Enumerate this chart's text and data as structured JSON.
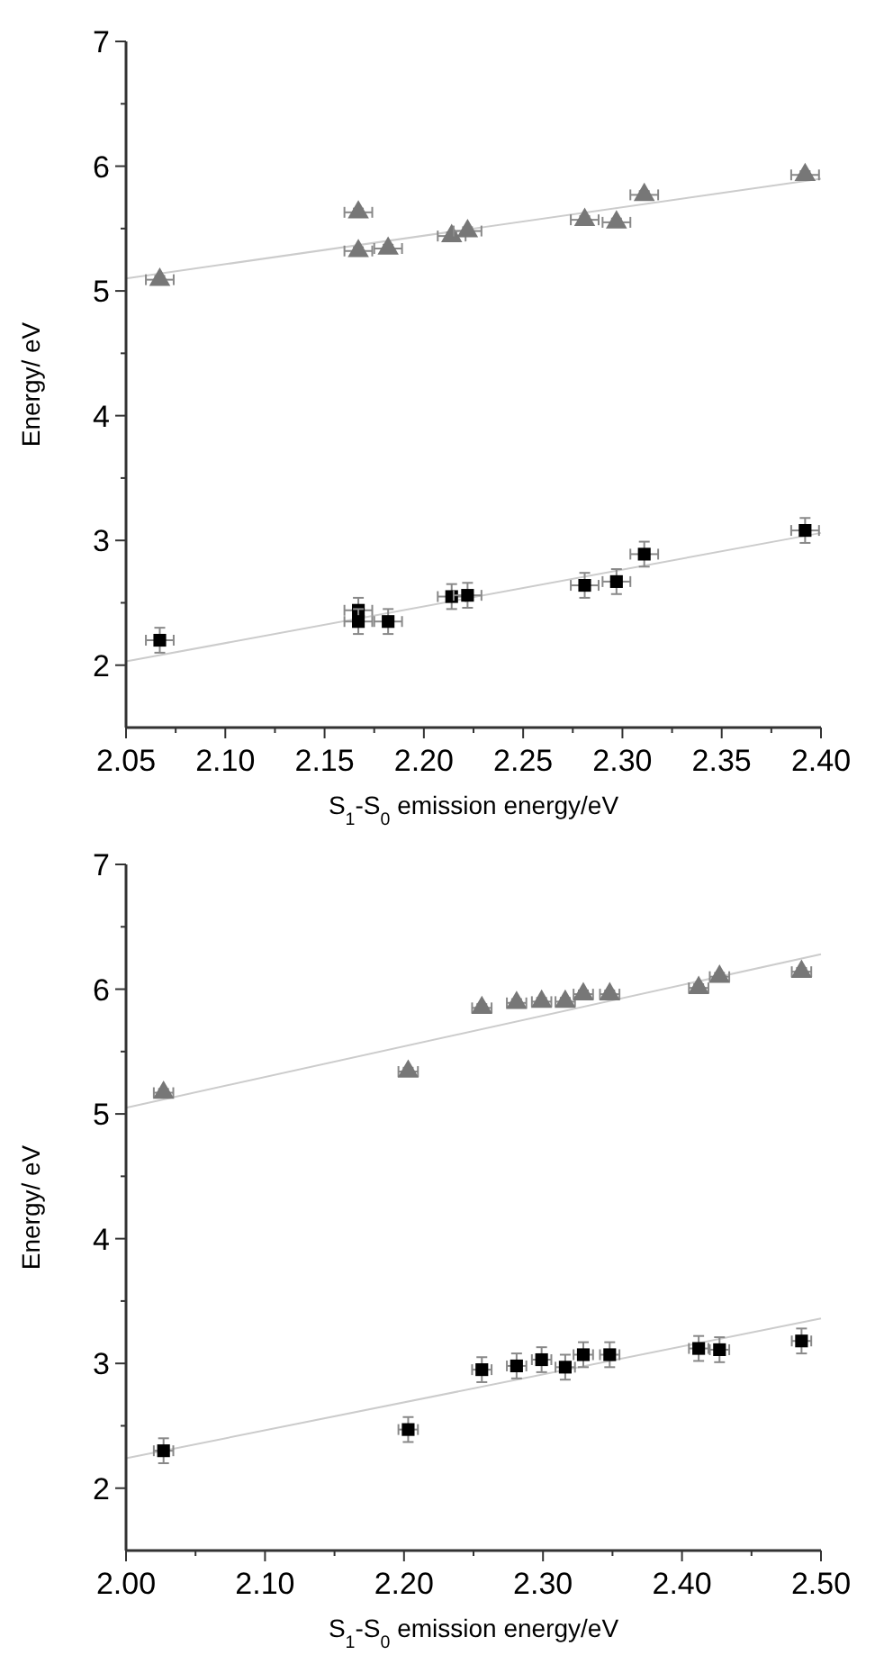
{
  "chart_data": [
    {
      "type": "scatter",
      "xlabel": "S$_{1}$-S$_{0}$ emission energy/eV",
      "ylabel": "Energy/ eV",
      "xlim": [
        2.05,
        2.4
      ],
      "xticks": [
        2.05,
        {
          "value": 2.075,
          "label": null
        },
        {
          "value": 2.1,
          "label": "2.10"
        },
        {
          "value": 2.125,
          "label": null
        },
        2.15,
        {
          "value": 2.175,
          "label": null
        },
        {
          "value": 2.2,
          "label": "2.20"
        },
        {
          "value": 2.225,
          "label": null
        },
        2.25,
        {
          "value": 2.275,
          "label": null
        },
        {
          "value": 2.3,
          "label": "2.30"
        },
        {
          "value": 2.325,
          "label": null
        },
        2.35,
        {
          "value": 2.375,
          "label": null
        },
        {
          "value": 2.4,
          "label": "2.40"
        }
      ],
      "ylim": [
        1.5,
        7
      ],
      "yticks": [
        2,
        {
          "value": 2.5,
          "label": null
        },
        3,
        {
          "value": 3.5,
          "label": null
        },
        4,
        {
          "value": 4.5,
          "label": null
        },
        5,
        {
          "value": 5.5,
          "label": null
        },
        6,
        {
          "value": 6.5,
          "label": null
        },
        7
      ],
      "series": [
        {
          "type": "line",
          "color": "#cccccc",
          "x": [
            2.05,
            2.4
          ],
          "values": [
            5.1,
            5.9
          ]
        },
        {
          "type": "line",
          "color": "#cccccc",
          "x": [
            2.05,
            2.4
          ],
          "values": [
            2.03,
            3.06
          ]
        },
        {
          "color": "#777777",
          "marker": "triangle",
          "x": [
            2.067,
            2.167,
            2.167,
            2.182,
            2.214,
            2.222,
            2.281,
            2.297,
            2.311,
            2.392
          ],
          "values": [
            5.09,
            5.63,
            5.32,
            5.34,
            5.44,
            5.48,
            5.57,
            5.55,
            5.77,
            5.93
          ],
          "errors": [
            0.03,
            0.03,
            0.03,
            0.03,
            0.03,
            0.03,
            0.03,
            0.03,
            0.03,
            0.03
          ],
          "xerrors": [
            0.007,
            0.007,
            0.007,
            0.007,
            0.007,
            0.007,
            0.007,
            0.007,
            0.007,
            0.007
          ]
        },
        {
          "color": "#000000",
          "marker": "square",
          "x": [
            2.067,
            2.167,
            2.167,
            2.182,
            2.214,
            2.222,
            2.281,
            2.297,
            2.311,
            2.392
          ],
          "values": [
            2.2,
            2.44,
            2.35,
            2.35,
            2.55,
            2.56,
            2.64,
            2.67,
            2.89,
            3.08
          ],
          "errors": [
            0.1,
            0.1,
            0.1,
            0.1,
            0.1,
            0.1,
            0.1,
            0.1,
            0.1,
            0.1
          ],
          "xerrors": [
            0.007,
            0.007,
            0.007,
            0.007,
            0.007,
            0.007,
            0.007,
            0.007,
            0.007,
            0.007
          ]
        }
      ]
    },
    {
      "type": "scatter",
      "xlabel": "S$_{1}$-S$_{0}$ emission energy/eV",
      "ylabel": "Energy/ eV",
      "xlim": [
        2.0,
        2.5
      ],
      "xticks": [
        {
          "value": 2.0,
          "label": "2.00"
        },
        {
          "value": 2.05,
          "label": null
        },
        {
          "value": 2.1,
          "label": "2.10"
        },
        {
          "value": 2.15,
          "label": null
        },
        {
          "value": 2.2,
          "label": "2.20"
        },
        {
          "value": 2.25,
          "label": null
        },
        {
          "value": 2.3,
          "label": "2.30"
        },
        {
          "value": 2.35,
          "label": null
        },
        {
          "value": 2.4,
          "label": "2.40"
        },
        {
          "value": 2.45,
          "label": null
        },
        {
          "value": 2.5,
          "label": "2.50"
        }
      ],
      "ylim": [
        1.5,
        7
      ],
      "yticks": [
        2,
        {
          "value": 2.5,
          "label": null
        },
        3,
        {
          "value": 3.5,
          "label": null
        },
        4,
        {
          "value": 4.5,
          "label": null
        },
        5,
        {
          "value": 5.5,
          "label": null
        },
        6,
        {
          "value": 6.5,
          "label": null
        },
        7
      ],
      "series": [
        {
          "type": "line",
          "color": "#cccccc",
          "x": [
            2.0,
            2.5
          ],
          "values": [
            5.05,
            6.28
          ]
        },
        {
          "type": "line",
          "color": "#cccccc",
          "x": [
            2.0,
            2.5
          ],
          "values": [
            2.24,
            3.36
          ]
        },
        {
          "color": "#777777",
          "marker": "triangle",
          "x": [
            2.027,
            2.203,
            2.256,
            2.281,
            2.299,
            2.316,
            2.329,
            2.348,
            2.412,
            2.427,
            2.486
          ],
          "values": [
            5.17,
            5.34,
            5.85,
            5.89,
            5.9,
            5.9,
            5.96,
            5.96,
            6.01,
            6.1,
            6.14
          ],
          "errors": [
            0.03,
            0.03,
            0.03,
            0.03,
            0.03,
            0.03,
            0.03,
            0.03,
            0.03,
            0.03,
            0.03
          ],
          "xerrors": [
            0.007,
            0.007,
            0.007,
            0.007,
            0.007,
            0.007,
            0.007,
            0.007,
            0.007,
            0.007,
            0.007
          ]
        },
        {
          "color": "#000000",
          "marker": "square",
          "x": [
            2.027,
            2.203,
            2.256,
            2.281,
            2.299,
            2.316,
            2.329,
            2.348,
            2.412,
            2.427,
            2.486
          ],
          "values": [
            2.3,
            2.47,
            2.95,
            2.98,
            3.03,
            2.97,
            3.07,
            3.07,
            3.12,
            3.11,
            3.18
          ],
          "errors": [
            0.1,
            0.1,
            0.1,
            0.1,
            0.1,
            0.1,
            0.1,
            0.1,
            0.1,
            0.1,
            0.1
          ],
          "xerrors": [
            0.007,
            0.007,
            0.007,
            0.007,
            0.007,
            0.007,
            0.007,
            0.007,
            0.007,
            0.007,
            0.007
          ]
        }
      ]
    }
  ]
}
